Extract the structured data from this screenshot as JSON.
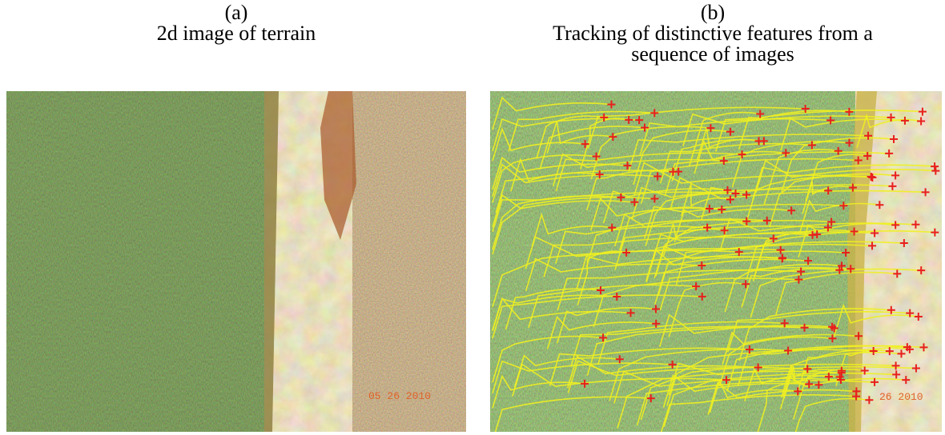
{
  "panels": [
    {
      "label": "(a)",
      "caption": [
        "2d image of terrain"
      ],
      "stamp": "05 26 2010"
    },
    {
      "label": "(b)",
      "caption": [
        "Tracking of distinctive features from a",
        "sequence of images"
      ],
      "stamp": "26 2010"
    }
  ]
}
